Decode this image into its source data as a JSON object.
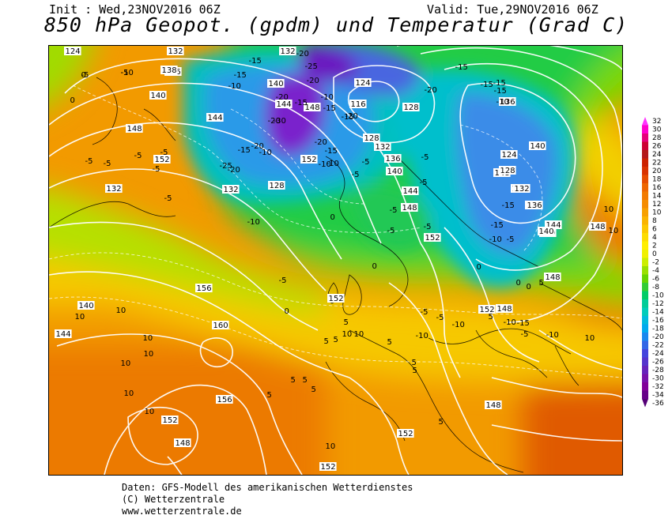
{
  "header": {
    "init": "Init : Wed,23NOV2016 06Z",
    "valid": "Valid: Tue,29NOV2016 06Z",
    "title": "850 hPa Geopot. (gpdm) und Temperatur (Grad C)"
  },
  "legend": {
    "values": [
      "32",
      "30",
      "28",
      "26",
      "24",
      "22",
      "20",
      "18",
      "16",
      "14",
      "12",
      "10",
      "8",
      "6",
      "4",
      "2",
      "0",
      "-2",
      "-4",
      "-6",
      "-8",
      "-10",
      "-12",
      "-14",
      "-16",
      "-18",
      "-20",
      "-22",
      "-24",
      "-26",
      "-28",
      "-30",
      "-32",
      "-34",
      "-36"
    ],
    "colors": [
      "#ff33ff",
      "#ff00cc",
      "#e6007a",
      "#cc0033",
      "#b31a1a",
      "#cc2200",
      "#d93300",
      "#e64d00",
      "#ee6600",
      "#f27a00",
      "#f58c00",
      "#f7a000",
      "#fab400",
      "#fcc800",
      "#fddc00",
      "#ffee00",
      "#f0f000",
      "#ccee00",
      "#99e000",
      "#66d400",
      "#33cc33",
      "#00cc66",
      "#00cc99",
      "#00ccbb",
      "#00bbdd",
      "#00aaee",
      "#1a88ee",
      "#3366e6",
      "#4444dd",
      "#5533cc",
      "#6622bb",
      "#7711aa",
      "#800099",
      "#660088",
      "#550077"
    ]
  },
  "geopotential_labels": [
    {
      "t": "124"
    },
    {
      "t": "132"
    },
    {
      "t": "136"
    },
    {
      "t": "138"
    },
    {
      "t": "140"
    },
    {
      "t": "144"
    },
    {
      "t": "148"
    },
    {
      "t": "152"
    },
    {
      "t": "132"
    },
    {
      "t": "140"
    },
    {
      "t": "144"
    },
    {
      "t": "148"
    },
    {
      "t": "152"
    },
    {
      "t": "132"
    },
    {
      "t": "128"
    },
    {
      "t": "124"
    },
    {
      "t": "116"
    },
    {
      "t": "128"
    },
    {
      "t": "128"
    },
    {
      "t": "132"
    },
    {
      "t": "136"
    },
    {
      "t": "140"
    },
    {
      "t": "144"
    },
    {
      "t": "148"
    },
    {
      "t": "152"
    },
    {
      "t": "136"
    },
    {
      "t": "140"
    },
    {
      "t": "148"
    },
    {
      "t": "152"
    },
    {
      "t": "136"
    },
    {
      "t": "140"
    },
    {
      "t": "144"
    },
    {
      "t": "148"
    },
    {
      "t": "152"
    },
    {
      "t": "156"
    },
    {
      "t": "160"
    },
    {
      "t": "144"
    },
    {
      "t": "140"
    },
    {
      "t": "156"
    },
    {
      "t": "152"
    },
    {
      "t": "148"
    },
    {
      "t": "152"
    },
    {
      "t": "148"
    },
    {
      "t": "152"
    },
    {
      "t": "124"
    },
    {
      "t": "128"
    },
    {
      "t": "132"
    },
    {
      "t": "136"
    },
    {
      "t": "140"
    },
    {
      "t": "148"
    },
    {
      "t": "152"
    },
    {
      "t": "148"
    },
    {
      "t": "132"
    }
  ],
  "temperature_labels": [
    {
      "t": "0"
    },
    {
      "t": "-5"
    },
    {
      "t": "0"
    },
    {
      "t": "-10"
    },
    {
      "t": "-15"
    },
    {
      "t": "-15"
    },
    {
      "t": "-20"
    },
    {
      "t": "-25"
    },
    {
      "t": "-20"
    },
    {
      "t": "-20"
    },
    {
      "t": "-15"
    },
    {
      "t": "-10"
    },
    {
      "t": "-15"
    },
    {
      "t": "-20"
    },
    {
      "t": "-30"
    },
    {
      "t": "-15"
    },
    {
      "t": "-20"
    },
    {
      "t": "-20"
    },
    {
      "t": "-10"
    },
    {
      "t": "-15"
    },
    {
      "t": "-20"
    },
    {
      "t": "-25"
    },
    {
      "t": "-20"
    },
    {
      "t": "-15"
    },
    {
      "t": "-10"
    },
    {
      "t": "-5"
    },
    {
      "t": "-5"
    },
    {
      "t": "-5"
    },
    {
      "t": "-5"
    },
    {
      "t": "-5"
    },
    {
      "t": "-5"
    },
    {
      "t": "-5"
    },
    {
      "t": "-5"
    },
    {
      "t": "-10"
    },
    {
      "t": "-10"
    },
    {
      "t": "-5"
    },
    {
      "t": "0"
    },
    {
      "t": "0"
    },
    {
      "t": "-5"
    },
    {
      "t": "-5"
    },
    {
      "t": "-5"
    },
    {
      "t": "-20"
    },
    {
      "t": "-15"
    },
    {
      "t": "-15"
    },
    {
      "t": "-10"
    },
    {
      "t": "-15"
    },
    {
      "t": "-15"
    },
    {
      "t": "-15"
    },
    {
      "t": "-15"
    },
    {
      "t": "-10"
    },
    {
      "t": "-5"
    },
    {
      "t": "-5"
    },
    {
      "t": "-5"
    },
    {
      "t": "-5"
    },
    {
      "t": "-10"
    },
    {
      "t": "0"
    },
    {
      "t": "0"
    },
    {
      "t": "0"
    },
    {
      "t": "0"
    },
    {
      "t": "5"
    },
    {
      "t": "5"
    },
    {
      "t": "5"
    },
    {
      "t": "5"
    },
    {
      "t": "5"
    },
    {
      "t": "5"
    },
    {
      "t": "5"
    },
    {
      "t": "5"
    },
    {
      "t": "5"
    },
    {
      "t": "5"
    },
    {
      "t": "5"
    },
    {
      "t": "10"
    },
    {
      "t": "10"
    },
    {
      "t": "10"
    },
    {
      "t": "10"
    },
    {
      "t": "10"
    },
    {
      "t": "10"
    },
    {
      "t": "10"
    },
    {
      "t": "10"
    },
    {
      "t": "10"
    },
    {
      "t": "10"
    },
    {
      "t": "10"
    },
    {
      "t": "10"
    },
    {
      "t": "10"
    },
    {
      "t": "5"
    },
    {
      "t": "5"
    },
    {
      "t": "-10"
    },
    {
      "t": "-15"
    },
    {
      "t": "-5"
    },
    {
      "t": "-10"
    },
    {
      "t": "-5"
    },
    {
      "t": "-10"
    },
    {
      "t": "-5"
    },
    {
      "t": "-10"
    }
  ],
  "footer": {
    "line1": "Daten: GFS-Modell des amerikanischen Wetterdienstes",
    "line2": "(C) Wetterzentrale",
    "line3": "www.wetterzentrale.de"
  }
}
